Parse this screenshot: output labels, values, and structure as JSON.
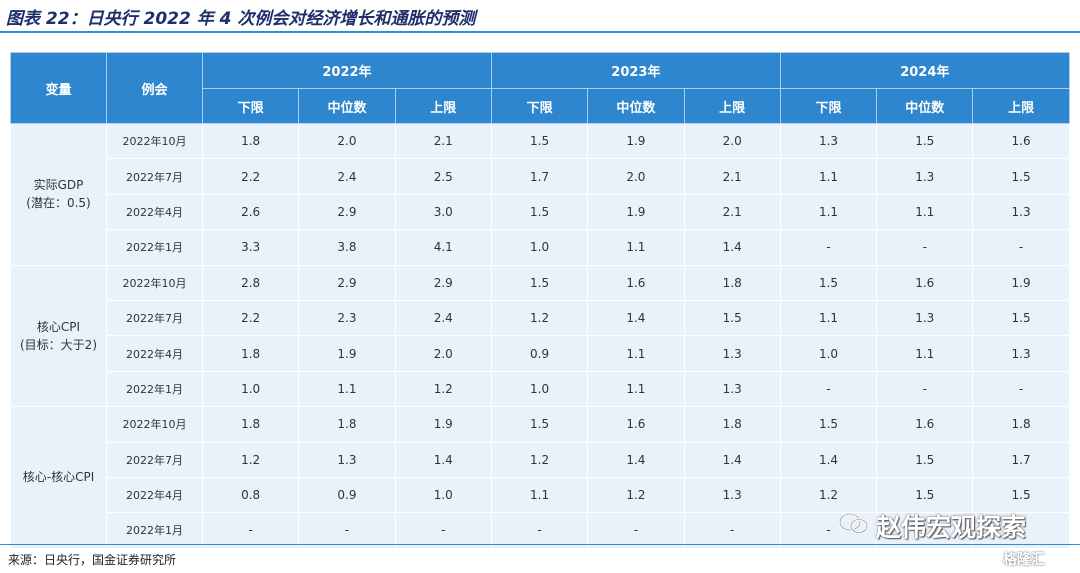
{
  "title": "图表 22：日央行 2022 年 4 次例会对经济增长和通胀的预测",
  "header": {
    "variable": "变量",
    "meeting": "例会",
    "years": [
      "2022年",
      "2023年",
      "2024年"
    ],
    "sub": [
      "下限",
      "中位数",
      "上限",
      "下限",
      "中位数",
      "上限",
      "下限",
      "中位数",
      "上限"
    ]
  },
  "groups": [
    {
      "name": "实际GDP",
      "note": "(潜在：0.5)",
      "rows": [
        {
          "date": "2022年10月",
          "values": [
            "1.8",
            "2.0",
            "2.1",
            "1.5",
            "1.9",
            "2.0",
            "1.3",
            "1.5",
            "1.6"
          ]
        },
        {
          "date": "2022年7月",
          "values": [
            "2.2",
            "2.4",
            "2.5",
            "1.7",
            "2.0",
            "2.1",
            "1.1",
            "1.3",
            "1.5"
          ]
        },
        {
          "date": "2022年4月",
          "values": [
            "2.6",
            "2.9",
            "3.0",
            "1.5",
            "1.9",
            "2.1",
            "1.1",
            "1.1",
            "1.3"
          ]
        },
        {
          "date": "2022年1月",
          "values": [
            "3.3",
            "3.8",
            "4.1",
            "1.0",
            "1.1",
            "1.4",
            "-",
            "-",
            "-"
          ]
        }
      ]
    },
    {
      "name": "核心CPI",
      "note": "(目标：大于2)",
      "rows": [
        {
          "date": "2022年10月",
          "values": [
            "2.8",
            "2.9",
            "2.9",
            "1.5",
            "1.6",
            "1.8",
            "1.5",
            "1.6",
            "1.9"
          ]
        },
        {
          "date": "2022年7月",
          "values": [
            "2.2",
            "2.3",
            "2.4",
            "1.2",
            "1.4",
            "1.5",
            "1.1",
            "1.3",
            "1.5"
          ]
        },
        {
          "date": "2022年4月",
          "values": [
            "1.8",
            "1.9",
            "2.0",
            "0.9",
            "1.1",
            "1.3",
            "1.0",
            "1.1",
            "1.3"
          ]
        },
        {
          "date": "2022年1月",
          "values": [
            "1.0",
            "1.1",
            "1.2",
            "1.0",
            "1.1",
            "1.3",
            "-",
            "-",
            "-"
          ]
        }
      ]
    },
    {
      "name": "核心-核心CPI",
      "note": "",
      "rows": [
        {
          "date": "2022年10月",
          "values": [
            "1.8",
            "1.8",
            "1.9",
            "1.5",
            "1.6",
            "1.8",
            "1.5",
            "1.6",
            "1.8"
          ]
        },
        {
          "date": "2022年7月",
          "values": [
            "1.2",
            "1.3",
            "1.4",
            "1.2",
            "1.4",
            "1.4",
            "1.4",
            "1.5",
            "1.7"
          ]
        },
        {
          "date": "2022年4月",
          "values": [
            "0.8",
            "0.9",
            "1.0",
            "1.1",
            "1.2",
            "1.3",
            "1.2",
            "1.5",
            "1.5"
          ]
        },
        {
          "date": "2022年1月",
          "values": [
            "-",
            "-",
            "-",
            "-",
            "-",
            "-",
            "-",
            "-",
            "-"
          ]
        }
      ]
    }
  ],
  "source": "来源：日央行，国金证券研究所",
  "watermark": "赵伟宏观探索",
  "watermark2": "格隆汇"
}
